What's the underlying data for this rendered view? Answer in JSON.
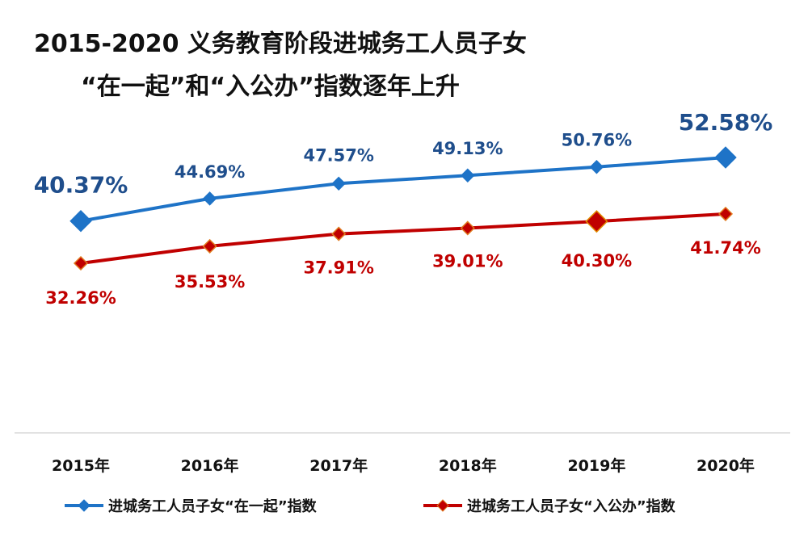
{
  "chart_data": {
    "type": "line",
    "title_lines": [
      "2015-2020  义务教育阶段进城务工人员子女",
      "“在一起”和“入公办”指数逐年上升"
    ],
    "categories": [
      "2015年",
      "2016年",
      "2017年",
      "2018年",
      "2019年",
      "2020年"
    ],
    "series": [
      {
        "name": "进城务工人员子女“在一起”指数",
        "values": [
          40.37,
          44.69,
          47.57,
          49.13,
          50.76,
          52.58
        ],
        "labels": [
          "40.37%",
          "44.69%",
          "47.57%",
          "49.13%",
          "50.76%",
          "52.58%"
        ],
        "color": "#1E73C7",
        "label_color": "#1F4E8C",
        "label_position": "above",
        "emphasized_points": [
          0,
          5
        ]
      },
      {
        "name": "进城务工人员子女“入公办”指数",
        "values": [
          32.26,
          35.53,
          37.91,
          39.01,
          40.3,
          41.74
        ],
        "labels": [
          "32.26%",
          "35.53%",
          "37.91%",
          "39.01%",
          "40.30%",
          "41.74%"
        ],
        "color": "#C00000",
        "label_color": "#C00000",
        "label_position": "below",
        "emphasized_points": [
          4
        ]
      }
    ],
    "legend_position": "bottom",
    "y_axis_shown": false,
    "grid": false
  }
}
